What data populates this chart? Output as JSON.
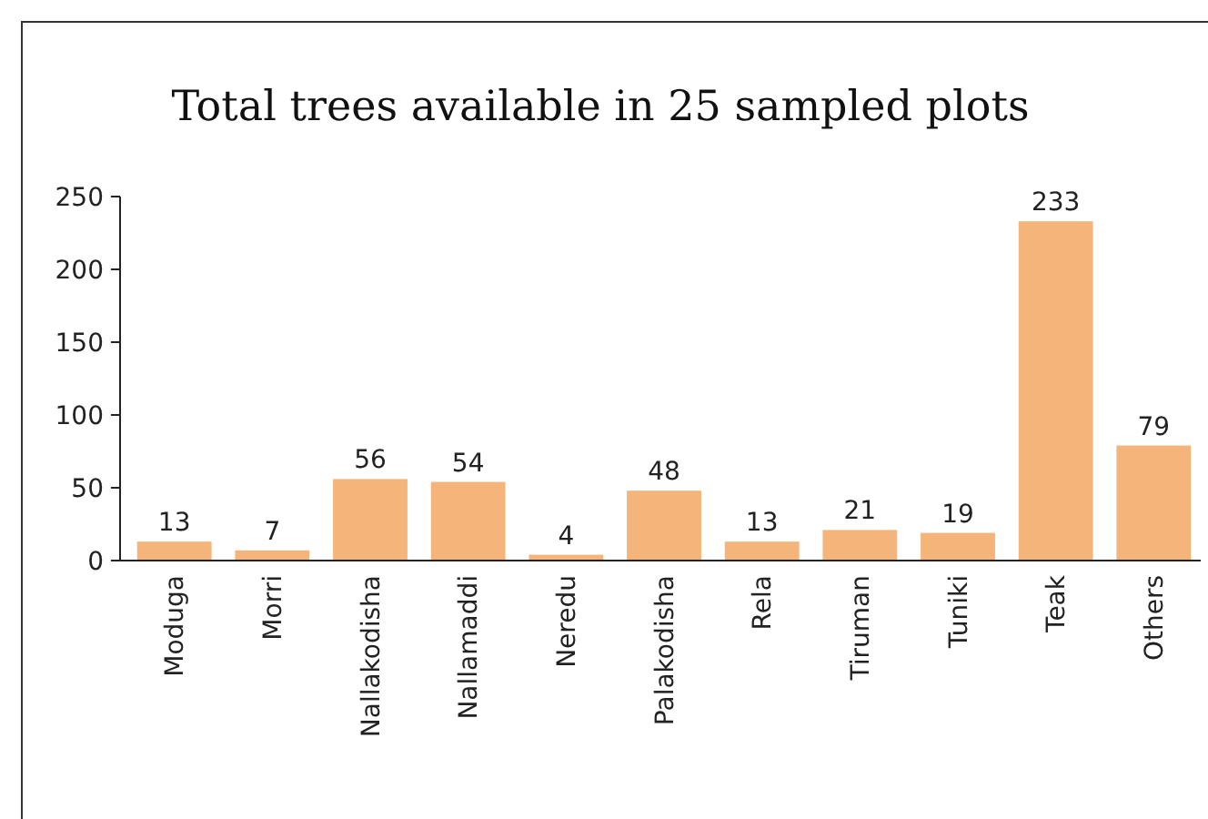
{
  "chart_data": {
    "type": "bar",
    "title": "Total trees available in 25 sampled plots",
    "categories": [
      "Moduga",
      "Morri",
      "Nallakodisha",
      "Nallamaddi",
      "Neredu",
      "Palakodisha",
      "Rela",
      "Tiruman",
      "Tuniki",
      "Teak",
      "Others"
    ],
    "values": [
      13,
      7,
      56,
      54,
      4,
      48,
      13,
      21,
      19,
      233,
      79
    ],
    "color": "#f4b47a",
    "ylim": [
      0,
      250
    ],
    "yticks": [
      0,
      50,
      100,
      150,
      200,
      250
    ],
    "data_labels": true,
    "grid": false
  }
}
